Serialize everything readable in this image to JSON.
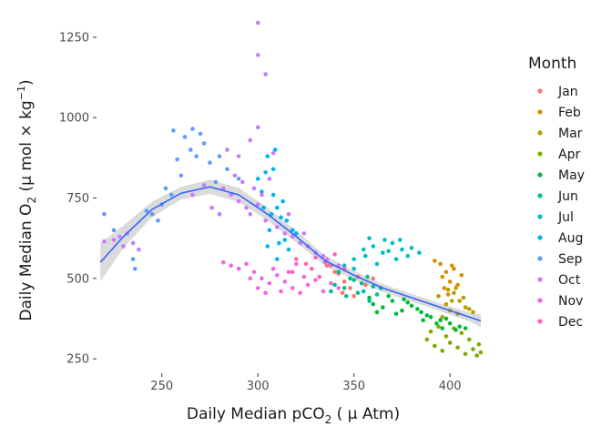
{
  "chart_data": {
    "type": "scatter",
    "xlabel_main": "Daily Median pCO",
    "xlabel_sub": "2",
    "xlabel_unit": " ( μ Atm)",
    "ylabel_main": "Daily Median O",
    "ylabel_sub": "2",
    "ylabel_unit": " (μ mol × kg",
    "ylabel_sup": "−1",
    "ylabel_end": ")",
    "xlim": [
      216,
      417
    ],
    "ylim": [
      205,
      1315
    ],
    "x_ticks": [
      250,
      300,
      350,
      400
    ],
    "x_tick_labels": [
      "250",
      "300",
      "350",
      "400"
    ],
    "y_ticks": [
      250,
      500,
      750,
      1000,
      1250
    ],
    "y_tick_labels": [
      "250",
      "500",
      "750",
      "1000",
      "1250"
    ],
    "grid": false,
    "legend": {
      "title": "Month",
      "placement": "right",
      "entries": [
        "Jan",
        "Feb",
        "Mar",
        "Apr",
        "May",
        "Jun",
        "Jul",
        "Aug",
        "Sep",
        "Oct",
        "Nov",
        "Dec"
      ]
    },
    "series": [
      {
        "name": "Jan",
        "color": "#F8766D",
        "points": [
          [
            345,
            490
          ],
          [
            348,
            470
          ],
          [
            352,
            505
          ],
          [
            340,
            520
          ],
          [
            356,
            480
          ],
          [
            344,
            455
          ],
          [
            360,
            500
          ],
          [
            336,
            540
          ],
          [
            350,
            445
          ],
          [
            342,
            515
          ]
        ]
      },
      {
        "name": "Feb",
        "color": "#DE8C00",
        "points": [
          [
            392,
            555
          ],
          [
            395,
            545
          ],
          [
            398,
            520
          ],
          [
            396,
            505
          ],
          [
            400,
            490
          ],
          [
            402,
            530
          ],
          [
            397,
            470
          ],
          [
            404,
            480
          ],
          [
            399,
            450
          ],
          [
            406,
            510
          ],
          [
            401,
            540
          ]
        ]
      },
      {
        "name": "Mar",
        "color": "#B79F00",
        "points": [
          [
            394,
            445
          ],
          [
            398,
            420
          ],
          [
            402,
            455
          ],
          [
            405,
            430
          ],
          [
            408,
            410
          ],
          [
            400,
            400
          ],
          [
            404,
            390
          ],
          [
            410,
            405
          ],
          [
            396,
            380
          ],
          [
            403,
            470
          ],
          [
            407,
            440
          ],
          [
            399,
            465
          ],
          [
            412,
            395
          ],
          [
            401,
            430
          ]
        ]
      },
      {
        "name": "Apr",
        "color": "#7CAE00",
        "points": [
          [
            388,
            310
          ],
          [
            392,
            290
          ],
          [
            396,
            275
          ],
          [
            400,
            300
          ],
          [
            404,
            285
          ],
          [
            408,
            265
          ],
          [
            412,
            280
          ],
          [
            414,
            260
          ],
          [
            398,
            320
          ],
          [
            402,
            345
          ],
          [
            406,
            330
          ],
          [
            410,
            310
          ],
          [
            415,
            295
          ],
          [
            390,
            335
          ],
          [
            394,
            350
          ],
          [
            416,
            270
          ]
        ]
      },
      {
        "name": "May",
        "color": "#00BA38",
        "points": [
          [
            360,
            420
          ],
          [
            365,
            410
          ],
          [
            370,
            430
          ],
          [
            375,
            400
          ],
          [
            380,
            415
          ],
          [
            385,
            395
          ],
          [
            390,
            380
          ],
          [
            395,
            370
          ],
          [
            400,
            360
          ],
          [
            405,
            350
          ],
          [
            368,
            445
          ],
          [
            372,
            390
          ],
          [
            378,
            425
          ],
          [
            383,
            405
          ],
          [
            388,
            385
          ],
          [
            393,
            360
          ],
          [
            398,
            375
          ],
          [
            403,
            340
          ],
          [
            408,
            345
          ],
          [
            358,
            440
          ],
          [
            362,
            395
          ],
          [
            376,
            435
          ],
          [
            386,
            370
          ],
          [
            396,
            345
          ]
        ]
      },
      {
        "name": "Jun",
        "color": "#00C08B",
        "points": [
          [
            340,
            480
          ],
          [
            345,
            470
          ],
          [
            350,
            495
          ],
          [
            355,
            460
          ],
          [
            360,
            475
          ],
          [
            352,
            455
          ],
          [
            348,
            500
          ],
          [
            342,
            520
          ],
          [
            357,
            505
          ],
          [
            362,
            450
          ],
          [
            346,
            445
          ],
          [
            354,
            485
          ],
          [
            338,
            460
          ],
          [
            364,
            470
          ],
          [
            358,
            430
          ]
        ]
      },
      {
        "name": "Jul",
        "color": "#00BFC4",
        "points": [
          [
            345,
            540
          ],
          [
            350,
            560
          ],
          [
            355,
            590
          ],
          [
            360,
            600
          ],
          [
            365,
            580
          ],
          [
            370,
            610
          ],
          [
            375,
            590
          ],
          [
            380,
            595
          ],
          [
            372,
            560
          ],
          [
            366,
            620
          ],
          [
            356,
            570
          ],
          [
            362,
            545
          ],
          [
            378,
            570
          ],
          [
            384,
            580
          ],
          [
            350,
            530
          ],
          [
            358,
            625
          ],
          [
            368,
            585
          ],
          [
            374,
            620
          ]
        ]
      },
      {
        "name": "Aug",
        "color": "#00B4F0",
        "points": [
          [
            300,
            810
          ],
          [
            305,
            880
          ],
          [
            308,
            760
          ],
          [
            310,
            720
          ],
          [
            312,
            690
          ],
          [
            306,
            650
          ],
          [
            314,
            620
          ],
          [
            316,
            590
          ],
          [
            310,
            560
          ],
          [
            304,
            830
          ],
          [
            302,
            770
          ],
          [
            318,
            650
          ],
          [
            309,
            900
          ],
          [
            313,
            740
          ],
          [
            307,
            700
          ],
          [
            315,
            680
          ],
          [
            303,
            720
          ],
          [
            311,
            610
          ],
          [
            305,
            600
          ],
          [
            320,
            640
          ],
          [
            308,
            840
          ]
        ]
      },
      {
        "name": "Sep",
        "color": "#619CFF",
        "points": [
          [
            220,
            700
          ],
          [
            225,
            650
          ],
          [
            230,
            600
          ],
          [
            235,
            560
          ],
          [
            236,
            530
          ],
          [
            245,
            700
          ],
          [
            250,
            730
          ],
          [
            255,
            760
          ],
          [
            260,
            820
          ],
          [
            265,
            900
          ],
          [
            270,
            950
          ],
          [
            262,
            940
          ],
          [
            272,
            920
          ],
          [
            275,
            860
          ],
          [
            268,
            880
          ],
          [
            258,
            870
          ],
          [
            248,
            680
          ],
          [
            252,
            780
          ],
          [
            242,
            710
          ],
          [
            278,
            800
          ],
          [
            256,
            960
          ],
          [
            266,
            965
          ],
          [
            280,
            880
          ],
          [
            284,
            840
          ],
          [
            290,
            810
          ]
        ]
      },
      {
        "name": "Oct",
        "color": "#C77CFF",
        "points": [
          [
            220,
            615
          ],
          [
            225,
            620
          ],
          [
            230,
            600
          ],
          [
            235,
            610
          ],
          [
            238,
            590
          ],
          [
            228,
            630
          ],
          [
            232,
            640
          ],
          [
            300,
            1295
          ],
          [
            304,
            1135
          ],
          [
            300,
            1195
          ],
          [
            282,
            780
          ],
          [
            286,
            760
          ],
          [
            290,
            740
          ],
          [
            294,
            720
          ],
          [
            296,
            700
          ],
          [
            300,
            730
          ],
          [
            304,
            680
          ],
          [
            310,
            660
          ],
          [
            314,
            640
          ],
          [
            318,
            630
          ],
          [
            322,
            610
          ],
          [
            326,
            600
          ],
          [
            330,
            580
          ],
          [
            334,
            570
          ],
          [
            288,
            820
          ],
          [
            292,
            800
          ],
          [
            298,
            780
          ],
          [
            302,
            760
          ],
          [
            280,
            700
          ],
          [
            276,
            720
          ],
          [
            272,
            790
          ],
          [
            266,
            760
          ],
          [
            296,
            930
          ],
          [
            300,
            970
          ],
          [
            290,
            880
          ],
          [
            306,
            810
          ],
          [
            316,
            700
          ],
          [
            324,
            640
          ],
          [
            336,
            560
          ],
          [
            342,
            540
          ],
          [
            284,
            900
          ],
          [
            308,
            890
          ]
        ]
      },
      {
        "name": "Nov",
        "color": "#F564E3",
        "points": [
          [
            282,
            550
          ],
          [
            286,
            540
          ],
          [
            290,
            530
          ],
          [
            294,
            545
          ],
          [
            298,
            520
          ],
          [
            302,
            500
          ],
          [
            306,
            485
          ],
          [
            310,
            510
          ],
          [
            314,
            490
          ],
          [
            318,
            470
          ],
          [
            322,
            455
          ],
          [
            326,
            480
          ],
          [
            330,
            495
          ],
          [
            334,
            460
          ],
          [
            338,
            485
          ],
          [
            342,
            470
          ],
          [
            300,
            470
          ],
          [
            308,
            530
          ],
          [
            316,
            520
          ],
          [
            324,
            505
          ],
          [
            320,
            545
          ],
          [
            312,
            460
          ],
          [
            296,
            500
          ],
          [
            304,
            455
          ]
        ]
      },
      {
        "name": "Dec",
        "color": "#FF64B0",
        "points": [
          [
            320,
            560
          ],
          [
            325,
            545
          ],
          [
            330,
            565
          ],
          [
            335,
            550
          ],
          [
            340,
            575
          ],
          [
            345,
            530
          ],
          [
            318,
            520
          ],
          [
            328,
            530
          ],
          [
            338,
            540
          ],
          [
            332,
            505
          ]
        ]
      }
    ],
    "trend": {
      "name": "smooth",
      "color": "#3366FF",
      "points": [
        [
          218,
          550
        ],
        [
          230,
          630
        ],
        [
          245,
          715
        ],
        [
          260,
          765
        ],
        [
          275,
          785
        ],
        [
          290,
          760
        ],
        [
          305,
          700
        ],
        [
          320,
          630
        ],
        [
          335,
          555
        ],
        [
          350,
          510
        ],
        [
          365,
          470
        ],
        [
          380,
          440
        ],
        [
          395,
          410
        ],
        [
          410,
          380
        ],
        [
          416,
          368
        ]
      ],
      "band_halfwidth": [
        60,
        35,
        24,
        20,
        22,
        22,
        20,
        18,
        16,
        14,
        12,
        12,
        12,
        14,
        20
      ]
    }
  }
}
